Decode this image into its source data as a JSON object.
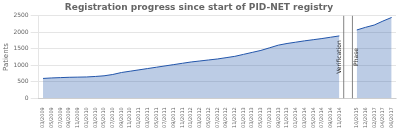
{
  "chart_data": {
    "type": "area",
    "title": "Registration progress since start of PID-NET registry",
    "y_label": "Patients",
    "categories": [
      "03/2009",
      "05/2009",
      "07/2009",
      "09/2009",
      "11/2009",
      "01/2010",
      "03/2010",
      "05/2010",
      "07/2010",
      "09/2010",
      "11/2010",
      "01/2011",
      "03/2011",
      "05/2011",
      "07/2011",
      "09/2011",
      "11/2011",
      "01/2012",
      "03/2012",
      "05/2012",
      "07/2012",
      "09/2012",
      "11/2012",
      "01/2013",
      "03/2013",
      "05/2013",
      "07/2013",
      "09/2013",
      "11/2013",
      "01/2014",
      "03/2014",
      "05/2014",
      "07/2014",
      "09/2014",
      "11/2014",
      null,
      "10/2015",
      "12/2016",
      "02/2017",
      "04/2017",
      "06/2017"
    ],
    "values": [
      600,
      615,
      625,
      635,
      640,
      645,
      660,
      680,
      720,
      780,
      820,
      860,
      900,
      940,
      980,
      1020,
      1060,
      1100,
      1130,
      1160,
      1190,
      1230,
      1270,
      1330,
      1390,
      1450,
      1530,
      1610,
      1660,
      1700,
      1740,
      1775,
      1810,
      1850,
      1890,
      null,
      2070,
      2150,
      2220,
      2340,
      2450
    ],
    "color": "#2255aa",
    "annotations": [
      "Verification",
      "Phase"
    ],
    "ylim": [
      0,
      2500
    ],
    "yticks": [
      0,
      500,
      1000,
      1500,
      2000,
      2500
    ],
    "grid": true
  }
}
